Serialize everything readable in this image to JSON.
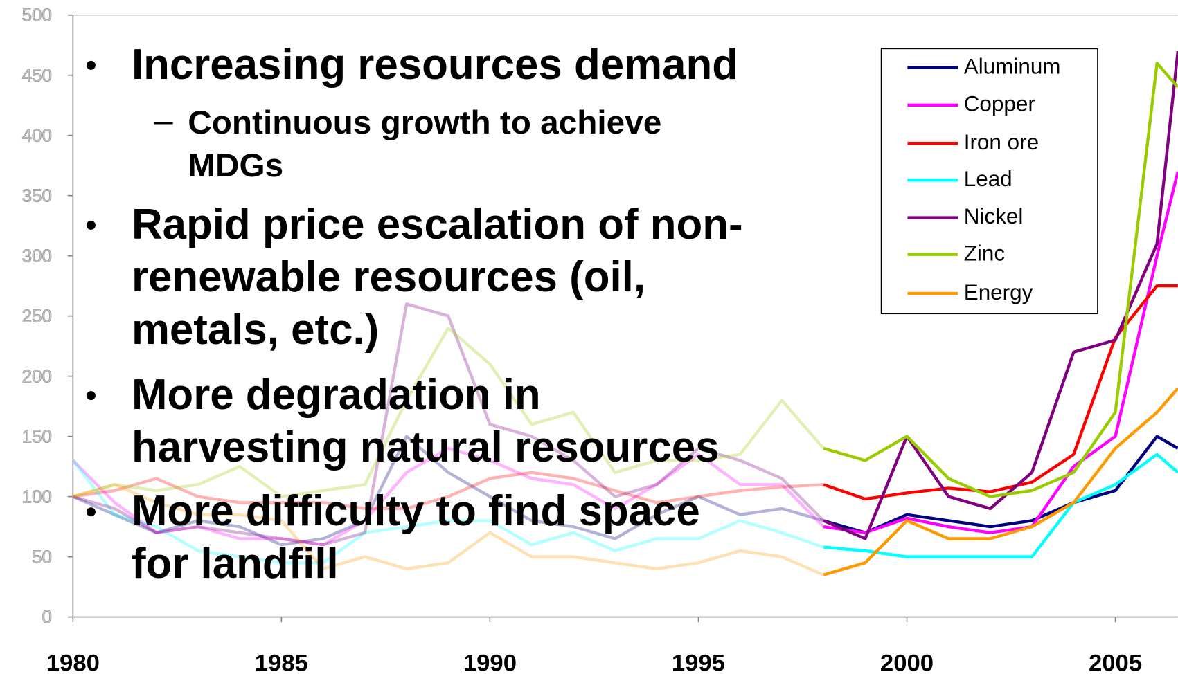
{
  "chart_data": {
    "type": "line",
    "x": [
      1980,
      1981,
      1982,
      1983,
      1984,
      1985,
      1986,
      1987,
      1988,
      1989,
      1990,
      1991,
      1992,
      1993,
      1994,
      1995,
      1996,
      1997,
      1998,
      1999,
      2000,
      2001,
      2002,
      2003,
      2004,
      2005,
      2006,
      2006.5
    ],
    "series": [
      {
        "name": "Aluminum",
        "color": "#000080",
        "values": [
          100,
          85,
          70,
          80,
          75,
          60,
          65,
          80,
          150,
          120,
          100,
          80,
          75,
          65,
          85,
          100,
          85,
          90,
          80,
          70,
          85,
          80,
          75,
          80,
          95,
          105,
          150,
          140
        ]
      },
      {
        "name": "Copper",
        "color": "#ff00ff",
        "values": [
          130,
          95,
          70,
          75,
          65,
          65,
          60,
          80,
          120,
          140,
          130,
          115,
          110,
          90,
          110,
          135,
          110,
          110,
          75,
          70,
          82,
          75,
          70,
          75,
          125,
          150,
          300,
          370
        ]
      },
      {
        "name": "Iron ore",
        "color": "#ff0000",
        "values": [
          100,
          105,
          115,
          100,
          95,
          95,
          95,
          90,
          90,
          100,
          115,
          120,
          115,
          105,
          95,
          100,
          105,
          108,
          110,
          98,
          103,
          107,
          104,
          112,
          135,
          232,
          275,
          275
        ]
      },
      {
        "name": "Lead",
        "color": "#00ffff",
        "values": [
          130,
          85,
          75,
          55,
          50,
          45,
          45,
          70,
          75,
          80,
          80,
          60,
          70,
          55,
          65,
          65,
          80,
          70,
          58,
          55,
          50,
          50,
          50,
          50,
          95,
          110,
          135,
          120
        ]
      },
      {
        "name": "Nickel",
        "color": "#800080",
        "values": [
          100,
          90,
          70,
          75,
          70,
          65,
          60,
          70,
          260,
          250,
          160,
          150,
          130,
          100,
          110,
          140,
          130,
          115,
          80,
          65,
          150,
          100,
          90,
          120,
          220,
          230,
          310,
          470
        ]
      },
      {
        "name": "Zinc",
        "color": "#99cc00",
        "values": [
          100,
          110,
          105,
          110,
          125,
          100,
          105,
          110,
          180,
          240,
          210,
          160,
          170,
          120,
          130,
          130,
          135,
          180,
          140,
          130,
          150,
          115,
          100,
          105,
          120,
          170,
          460,
          440
        ]
      },
      {
        "name": "Energy",
        "color": "#ff9900",
        "values": [
          100,
          110,
          95,
          85,
          85,
          80,
          40,
          50,
          40,
          45,
          70,
          50,
          50,
          45,
          40,
          45,
          55,
          50,
          35,
          45,
          80,
          65,
          65,
          75,
          95,
          140,
          170,
          190
        ]
      }
    ],
    "xlim": [
      1980,
      2006.5
    ],
    "xticks": [
      1980,
      1985,
      1990,
      1995,
      2000,
      2005
    ],
    "ylim": [
      0,
      500
    ],
    "yticks": [
      0,
      50,
      100,
      150,
      200,
      250,
      300,
      350,
      400,
      450,
      500
    ],
    "highlight_from": 1998,
    "legend": "top-right"
  },
  "slide": {
    "bullets": [
      {
        "lines": [
          "Increasing resources demand"
        ],
        "sub": [
          {
            "lines": [
              "Continuous growth to achieve",
              "MDGs"
            ]
          }
        ]
      },
      {
        "lines": [
          "Rapid price escalation of non-",
          "renewable resources (oil,",
          "metals, etc.)"
        ]
      },
      {
        "lines": [
          "More degradation in",
          "harvesting natural resources"
        ]
      },
      {
        "lines": [
          "More difficulty to find space",
          "for landfill"
        ]
      }
    ]
  }
}
